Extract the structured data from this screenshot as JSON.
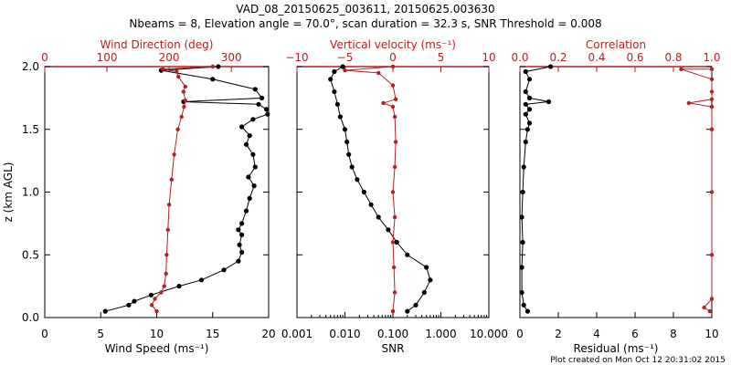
{
  "title_line1": "VAD_08_20150625_003611, 20150625.003630",
  "title_line2": "Nbeams = 8, Elevation angle = 70.0°, scan duration = 32.3 s, SNR Threshold = 0.008",
  "footer": "Plot created on Mon Oct 12 20:31:02 2015",
  "colors": {
    "black": "#000000",
    "red": "#b22222"
  },
  "chart_data": [
    {
      "type": "line",
      "panel": "wind",
      "ylabel": "z (km AGL)",
      "ylim": [
        0,
        2.0
      ],
      "yticks": [
        "0.0",
        "0.5",
        "1.0",
        "1.5",
        "2.0"
      ],
      "bottom_axis": {
        "label": "Wind Speed (ms⁻¹)",
        "lim": [
          0,
          20
        ],
        "ticks": [
          "0",
          "5",
          "10",
          "15",
          "20"
        ]
      },
      "top_axis": {
        "label": "Wind Direction (deg)",
        "lim": [
          0,
          360
        ],
        "ticks": [
          "0",
          "100",
          "200",
          "300"
        ]
      },
      "series": [
        {
          "name": "Wind Speed",
          "axis": "bottom",
          "color": "black",
          "points": [
            [
              5.4,
              0.05
            ],
            [
              7.5,
              0.1
            ],
            [
              8.0,
              0.13
            ],
            [
              9.5,
              0.18
            ],
            [
              12.0,
              0.25
            ],
            [
              14.0,
              0.3
            ],
            [
              16.0,
              0.38
            ],
            [
              17.3,
              0.45
            ],
            [
              17.6,
              0.52
            ],
            [
              17.4,
              0.58
            ],
            [
              17.6,
              0.66
            ],
            [
              17.3,
              0.7
            ],
            [
              17.6,
              0.75
            ],
            [
              18.0,
              0.85
            ],
            [
              18.3,
              0.95
            ],
            [
              18.7,
              1.05
            ],
            [
              18.2,
              1.12
            ],
            [
              18.8,
              1.2
            ],
            [
              18.6,
              1.3
            ],
            [
              18.0,
              1.38
            ],
            [
              18.3,
              1.45
            ],
            [
              17.6,
              1.52
            ],
            [
              18.6,
              1.58
            ],
            [
              19.9,
              1.62
            ],
            [
              19.8,
              1.66
            ],
            [
              19.1,
              1.7
            ],
            [
              12.4,
              1.72
            ],
            [
              19.4,
              1.75
            ],
            [
              18.8,
              1.82
            ],
            [
              15.0,
              1.9
            ],
            [
              10.4,
              1.97
            ],
            [
              15.5,
              2.0
            ]
          ]
        },
        {
          "name": "Wind Direction",
          "axis": "top",
          "color": "red",
          "points": [
            [
              180,
              0.05
            ],
            [
              172,
              0.1
            ],
            [
              177,
              0.15
            ],
            [
              187,
              0.2
            ],
            [
              192,
              0.25
            ],
            [
              195,
              0.35
            ],
            [
              196,
              0.5
            ],
            [
              198,
              0.7
            ],
            [
              200,
              0.9
            ],
            [
              204,
              1.1
            ],
            [
              208,
              1.3
            ],
            [
              214,
              1.5
            ],
            [
              220,
              1.6
            ],
            [
              224,
              1.68
            ],
            [
              226,
              1.73
            ],
            [
              223,
              1.8
            ],
            [
              226,
              1.84
            ],
            [
              215,
              1.92
            ],
            [
              212,
              1.96
            ],
            [
              190,
              1.98
            ],
            [
              270,
              2.0
            ]
          ]
        }
      ]
    },
    {
      "type": "line",
      "panel": "snr",
      "bottom_axis": {
        "label": "SNR",
        "scale": "log",
        "lim": [
          0.001,
          10
        ],
        "ticks": [
          "0.001",
          "0.010",
          "0.100",
          "1.000",
          "10.000"
        ]
      },
      "top_axis": {
        "label": "Vertical velocity (ms⁻¹)",
        "lim": [
          -10,
          10
        ],
        "ticks": [
          "−10",
          "−5",
          "0",
          "5",
          "10"
        ]
      },
      "series": [
        {
          "name": "SNR",
          "axis": "bottom",
          "color": "black",
          "points": [
            [
              0.2,
              0.05
            ],
            [
              0.3,
              0.1
            ],
            [
              0.45,
              0.2
            ],
            [
              0.6,
              0.3
            ],
            [
              0.5,
              0.4
            ],
            [
              0.2,
              0.5
            ],
            [
              0.12,
              0.6
            ],
            [
              0.08,
              0.7
            ],
            [
              0.05,
              0.8
            ],
            [
              0.035,
              0.9
            ],
            [
              0.025,
              1.0
            ],
            [
              0.018,
              1.1
            ],
            [
              0.014,
              1.2
            ],
            [
              0.012,
              1.3
            ],
            [
              0.011,
              1.4
            ],
            [
              0.01,
              1.5
            ],
            [
              0.008,
              1.6
            ],
            [
              0.007,
              1.7
            ],
            [
              0.006,
              1.8
            ],
            [
              0.005,
              1.9
            ],
            [
              0.006,
              1.96
            ],
            [
              0.009,
              2.0
            ]
          ]
        },
        {
          "name": "Vertical velocity",
          "axis": "top",
          "color": "red",
          "points": [
            [
              0.0,
              0.05
            ],
            [
              0.2,
              0.2
            ],
            [
              0.1,
              0.4
            ],
            [
              0.0,
              0.6
            ],
            [
              0.2,
              0.8
            ],
            [
              0.0,
              1.0
            ],
            [
              0.2,
              1.2
            ],
            [
              0.3,
              1.4
            ],
            [
              0.2,
              1.6
            ],
            [
              0.0,
              1.68
            ],
            [
              -1.0,
              1.71
            ],
            [
              0.3,
              1.74
            ],
            [
              0.0,
              1.85
            ],
            [
              -1.5,
              1.95
            ],
            [
              -5.0,
              1.97
            ],
            [
              0.0,
              2.0
            ]
          ]
        }
      ]
    },
    {
      "type": "line",
      "panel": "correlation",
      "bottom_axis": {
        "label": "Residual (ms⁻¹)",
        "lim": [
          0,
          10
        ],
        "ticks": [
          "0",
          "2",
          "4",
          "6",
          "8",
          "10"
        ]
      },
      "top_axis": {
        "label": "Correlation",
        "lim": [
          0,
          1.0
        ],
        "ticks": [
          "0.0",
          "0.2",
          "0.4",
          "0.6",
          "0.8",
          "1.0"
        ]
      },
      "series": [
        {
          "name": "Residual",
          "axis": "bottom",
          "color": "black",
          "points": [
            [
              0.4,
              0.05
            ],
            [
              0.2,
              0.1
            ],
            [
              0.1,
              0.2
            ],
            [
              0.1,
              0.4
            ],
            [
              0.15,
              0.6
            ],
            [
              0.1,
              0.8
            ],
            [
              0.15,
              1.0
            ],
            [
              0.2,
              1.2
            ],
            [
              0.3,
              1.4
            ],
            [
              0.4,
              1.5
            ],
            [
              0.5,
              1.55
            ],
            [
              0.3,
              1.62
            ],
            [
              0.5,
              1.66
            ],
            [
              0.3,
              1.7
            ],
            [
              1.5,
              1.72
            ],
            [
              0.5,
              1.75
            ],
            [
              0.3,
              1.8
            ],
            [
              0.5,
              1.9
            ],
            [
              0.3,
              1.96
            ],
            [
              1.6,
              2.0
            ]
          ]
        },
        {
          "name": "Correlation",
          "axis": "top",
          "color": "red",
          "points": [
            [
              0.99,
              0.05
            ],
            [
              0.96,
              0.08
            ],
            [
              1.0,
              0.15
            ],
            [
              1.0,
              0.5
            ],
            [
              1.0,
              1.0
            ],
            [
              1.0,
              1.5
            ],
            [
              1.0,
              1.68
            ],
            [
              0.88,
              1.71
            ],
            [
              1.0,
              1.74
            ],
            [
              1.0,
              1.8
            ],
            [
              1.0,
              1.9
            ],
            [
              0.84,
              1.98
            ],
            [
              1.0,
              1.98
            ]
          ]
        }
      ]
    }
  ]
}
